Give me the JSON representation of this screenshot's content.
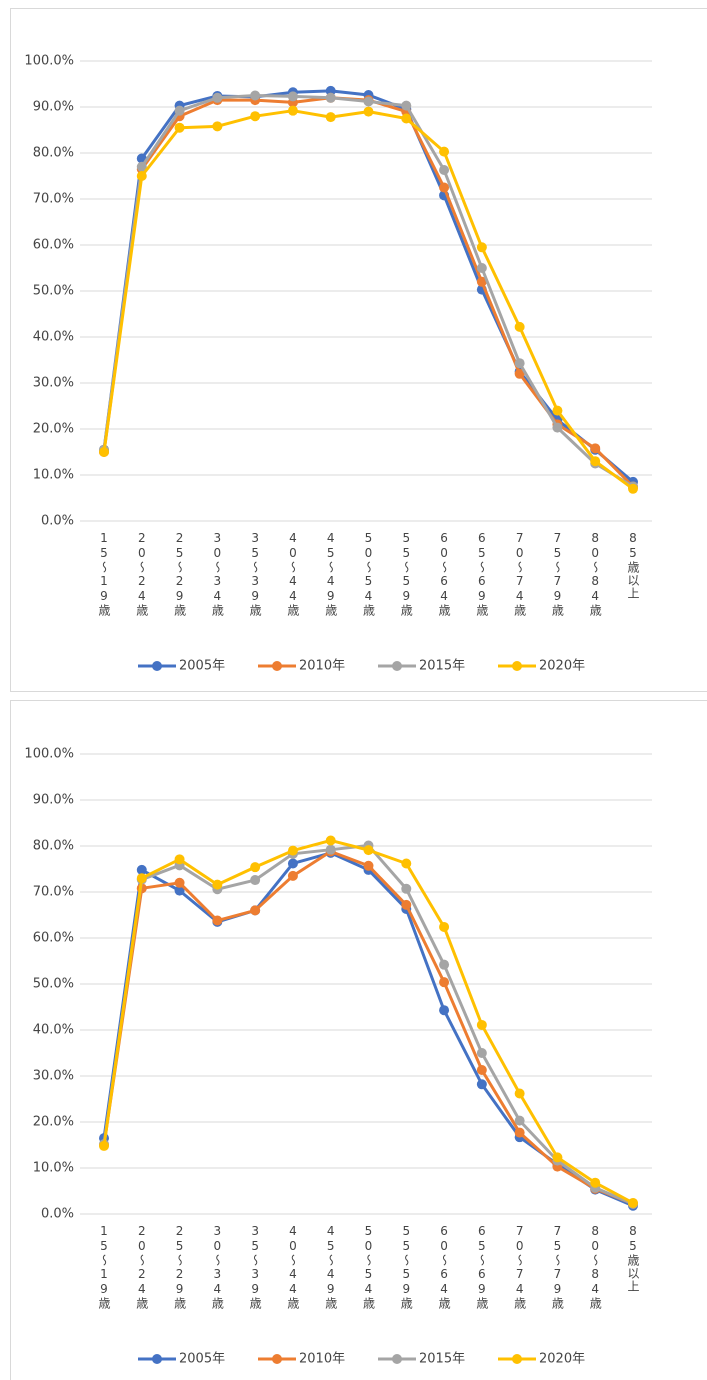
{
  "chart_data": [
    {
      "type": "line",
      "categories": [
        "15～19歳",
        "20～24歳",
        "25～29歳",
        "30～34歳",
        "35～39歳",
        "40～44歳",
        "45～49歳",
        "50～54歳",
        "55～59歳",
        "60～64歳",
        "65～69歳",
        "70～74歳",
        "75～79歳",
        "80～84歳",
        "85歳以上"
      ],
      "series": [
        {
          "name": "2005年",
          "color": "#4472c4",
          "values": [
            15.5,
            78.8,
            90.3,
            92.4,
            92.2,
            93.2,
            93.5,
            92.6,
            89.5,
            70.8,
            50.3,
            32.5,
            22.0,
            15.5,
            8.5
          ]
        },
        {
          "name": "2010年",
          "color": "#ed7d31",
          "values": [
            15.0,
            76.5,
            88.0,
            91.5,
            91.5,
            91.0,
            92.0,
            91.5,
            89.0,
            72.5,
            52.0,
            32.0,
            21.0,
            15.8,
            7.5
          ]
        },
        {
          "name": "2015年",
          "color": "#a5a5a5",
          "values": [
            15.5,
            77.0,
            89.2,
            92.0,
            92.5,
            92.3,
            92.0,
            91.2,
            90.3,
            76.3,
            55.0,
            34.3,
            20.3,
            12.5,
            7.5
          ]
        },
        {
          "name": "2020年",
          "color": "#ffc000",
          "values": [
            15.0,
            75.0,
            85.5,
            85.8,
            88.0,
            89.2,
            87.8,
            89.0,
            87.5,
            80.3,
            59.5,
            42.2,
            24.0,
            13.0,
            7.0
          ]
        }
      ],
      "ylim": [
        0,
        100
      ],
      "yticks": [
        {
          "value": 0,
          "label": "0.0%"
        },
        {
          "value": 10,
          "label": "10.0%"
        },
        {
          "value": 20,
          "label": "20.0%"
        },
        {
          "value": 30,
          "label": "30.0%"
        },
        {
          "value": 40,
          "label": "40.0%"
        },
        {
          "value": 50,
          "label": "50.0%"
        },
        {
          "value": 60,
          "label": "60.0%"
        },
        {
          "value": 70,
          "label": "70.0%"
        },
        {
          "value": 80,
          "label": "80.0%"
        },
        {
          "value": 90,
          "label": "90.0%"
        },
        {
          "value": 100,
          "label": "100.0%"
        }
      ],
      "grid": true,
      "legend": "bottom"
    },
    {
      "type": "line",
      "categories": [
        "15～19歳",
        "20～24歳",
        "25～29歳",
        "30～34歳",
        "35～39歳",
        "40～44歳",
        "45～49歳",
        "50～54歳",
        "55～59歳",
        "60～64歳",
        "65～69歳",
        "70～74歳",
        "75～79歳",
        "80～84歳",
        "85歳以上"
      ],
      "series": [
        {
          "name": "2005年",
          "color": "#4472c4",
          "values": [
            16.5,
            74.8,
            70.3,
            63.5,
            66.0,
            76.2,
            78.5,
            74.8,
            66.3,
            44.3,
            28.2,
            16.7,
            10.8,
            5.3,
            1.8
          ]
        },
        {
          "name": "2010年",
          "color": "#ed7d31",
          "values": [
            15.0,
            70.8,
            72.0,
            63.8,
            66.0,
            73.5,
            78.8,
            75.7,
            67.2,
            50.4,
            31.3,
            17.7,
            10.3,
            5.5,
            2.2
          ]
        },
        {
          "name": "2015年",
          "color": "#a5a5a5",
          "values": [
            15.2,
            72.7,
            75.8,
            70.6,
            72.6,
            78.3,
            79.2,
            80.1,
            70.7,
            54.2,
            35.0,
            20.3,
            11.6,
            5.7,
            2.2
          ]
        },
        {
          "name": "2020年",
          "color": "#ffc000",
          "values": [
            14.8,
            73.0,
            77.1,
            71.6,
            75.4,
            79.0,
            81.2,
            79.1,
            76.2,
            62.4,
            41.1,
            26.2,
            12.3,
            6.8,
            2.4
          ]
        }
      ],
      "ylim": [
        0,
        100
      ],
      "yticks": [
        {
          "value": 0,
          "label": "0.0%"
        },
        {
          "value": 10,
          "label": "10.0%"
        },
        {
          "value": 20,
          "label": "20.0%"
        },
        {
          "value": 30,
          "label": "30.0%"
        },
        {
          "value": 40,
          "label": "40.0%"
        },
        {
          "value": 50,
          "label": "50.0%"
        },
        {
          "value": 60,
          "label": "60.0%"
        },
        {
          "value": 70,
          "label": "70.0%"
        },
        {
          "value": 80,
          "label": "80.0%"
        },
        {
          "value": 90,
          "label": "90.0%"
        },
        {
          "value": 100,
          "label": "100.0%"
        }
      ],
      "grid": true,
      "legend": "bottom"
    }
  ]
}
